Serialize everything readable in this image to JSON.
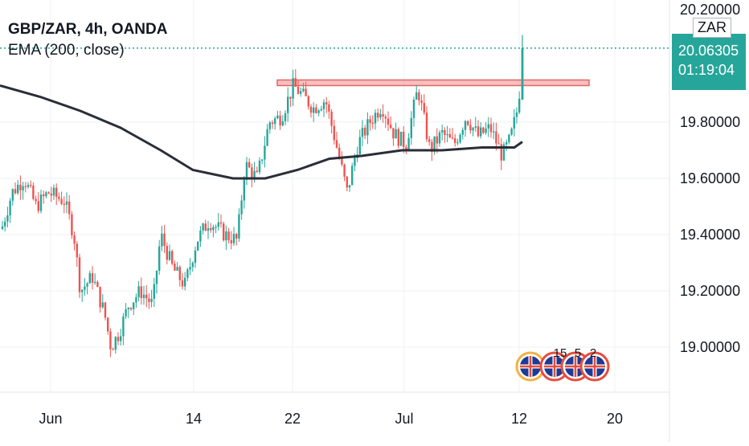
{
  "legend": {
    "title": "GBP/ZAR, 4h, OANDA",
    "indicator": "EMA (200, close)"
  },
  "price_scale": {
    "currency": "ZAR",
    "last_price": "20.06305",
    "countdown": "01:19:04",
    "top_partial_tick": "20.20000"
  },
  "colors": {
    "up": "#26a69a",
    "down": "#ef5350",
    "ema": "#2a2e39",
    "resistance": "#f28b8b",
    "last_price_line": "#26a69a",
    "grid": "#eef0f3"
  },
  "events": {
    "counts": [
      "15",
      "5",
      "2"
    ]
  },
  "chart_data": {
    "type": "candlestick",
    "ylim": [
      18.88,
      20.24
    ],
    "y_ticks": [
      "19.00000",
      "19.20000",
      "19.40000",
      "19.60000",
      "19.80000"
    ],
    "x_ticks": [
      "Jun",
      "14",
      "22",
      "Jul",
      "12",
      "20"
    ],
    "ema_label": "EMA (200, close)",
    "ema_path": [
      [
        0,
        19.93
      ],
      [
        50,
        19.89
      ],
      [
        100,
        19.84
      ],
      [
        150,
        19.78
      ],
      [
        200,
        19.7
      ],
      [
        240,
        19.63
      ],
      [
        290,
        19.6
      ],
      [
        330,
        19.6
      ],
      [
        370,
        19.63
      ],
      [
        410,
        19.67
      ],
      [
        450,
        19.68
      ],
      [
        500,
        19.7
      ],
      [
        550,
        19.7
      ],
      [
        600,
        19.71
      ],
      [
        640,
        19.71
      ],
      [
        650,
        19.73
      ]
    ],
    "resistance_zone": {
      "x_start": 345,
      "x_end": 733,
      "y_low": 19.93,
      "y_high": 19.95
    },
    "last_price": 20.06305,
    "close_path": [
      [
        0,
        19.4
      ],
      [
        15,
        19.55
      ],
      [
        30,
        19.6
      ],
      [
        45,
        19.5
      ],
      [
        60,
        19.55
      ],
      [
        80,
        19.52
      ],
      [
        92,
        19.4
      ],
      [
        100,
        19.2
      ],
      [
        115,
        19.25
      ],
      [
        130,
        19.12
      ],
      [
        138,
        19.0
      ],
      [
        148,
        19.05
      ],
      [
        160,
        19.15
      ],
      [
        175,
        19.2
      ],
      [
        190,
        19.15
      ],
      [
        200,
        19.4
      ],
      [
        215,
        19.28
      ],
      [
        230,
        19.22
      ],
      [
        245,
        19.38
      ],
      [
        260,
        19.45
      ],
      [
        280,
        19.4
      ],
      [
        295,
        19.38
      ],
      [
        305,
        19.65
      ],
      [
        320,
        19.6
      ],
      [
        335,
        19.8
      ],
      [
        350,
        19.82
      ],
      [
        365,
        19.93
      ],
      [
        375,
        19.9
      ],
      [
        390,
        19.85
      ],
      [
        405,
        19.88
      ],
      [
        420,
        19.7
      ],
      [
        432,
        19.55
      ],
      [
        445,
        19.72
      ],
      [
        460,
        19.8
      ],
      [
        475,
        19.86
      ],
      [
        490,
        19.76
      ],
      [
        505,
        19.72
      ],
      [
        520,
        19.92
      ],
      [
        535,
        19.7
      ],
      [
        550,
        19.76
      ],
      [
        565,
        19.72
      ],
      [
        580,
        19.82
      ],
      [
        595,
        19.75
      ],
      [
        610,
        19.78
      ],
      [
        625,
        19.68
      ],
      [
        635,
        19.74
      ],
      [
        645,
        19.86
      ],
      [
        650,
        20.06
      ]
    ]
  }
}
